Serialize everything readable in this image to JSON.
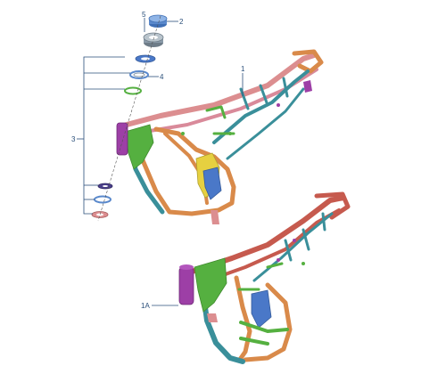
{
  "callouts": {
    "frame_main": "1",
    "frame_alt": "1A",
    "dust_cap": "2",
    "bearing_set": "3",
    "race_ring": "4",
    "locknut": "5"
  },
  "colors": {
    "frame_orange": "#d98a4a",
    "frame_pink": "#dc8e90",
    "frame_red": "#c65a4e",
    "frame_teal": "#3a8f9a",
    "frame_green": "#55b040",
    "frame_purple": "#9d3fa6",
    "frame_blue": "#4a78c8",
    "frame_yellow": "#e6d040",
    "hardware_steel": "#8a9aa8",
    "label_blue": "#2a4f7a"
  },
  "icons": {
    "dust_cap": "blue-cap-icon",
    "locknut": "grey-nut-icon",
    "washer": "blue-washer-icon",
    "bearing": "bearing-ring-icon",
    "green_ring": "green-ring-icon",
    "lower_cup": "pink-cup-icon"
  }
}
